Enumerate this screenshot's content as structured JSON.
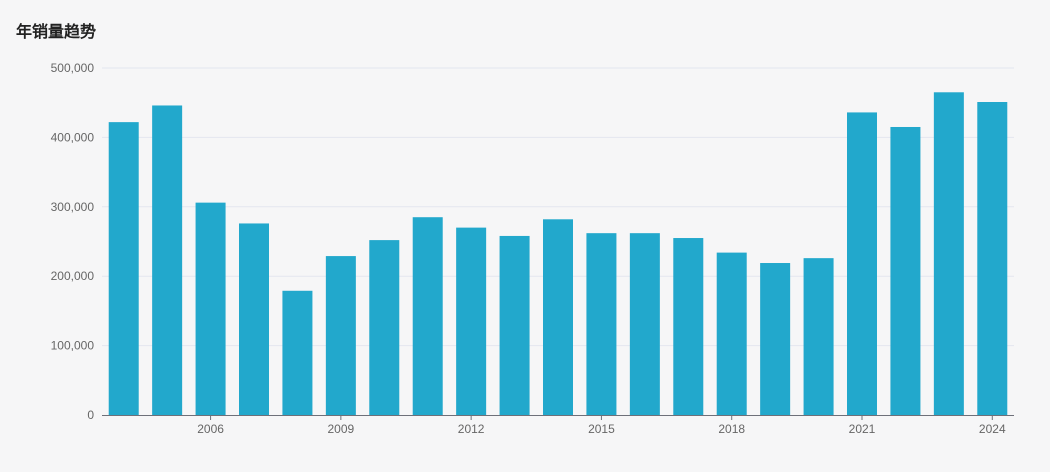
{
  "chart_data": {
    "type": "bar",
    "title": "年销量趋势",
    "xlabel": "",
    "ylabel": "",
    "categories": [
      "2004",
      "2005",
      "2006",
      "2007",
      "2008",
      "2009",
      "2010",
      "2011",
      "2012",
      "2013",
      "2014",
      "2015",
      "2016",
      "2017",
      "2018",
      "2019",
      "2020",
      "2021",
      "2022",
      "2023",
      "2024"
    ],
    "values": [
      422000,
      446000,
      306000,
      276000,
      179000,
      229000,
      252000,
      285000,
      270000,
      258000,
      282000,
      262000,
      262000,
      255000,
      234000,
      219000,
      226000,
      436000,
      415000,
      465000,
      451000
    ],
    "ylim": [
      0,
      500000
    ],
    "yticks": [
      "0",
      "100,000",
      "200,000",
      "300,000",
      "400,000",
      "500,000"
    ],
    "xticks_shown": [
      "2006",
      "2009",
      "2012",
      "2015",
      "2018",
      "2021",
      "2024"
    ],
    "grid": true,
    "bar_color": "#22a8cc"
  }
}
